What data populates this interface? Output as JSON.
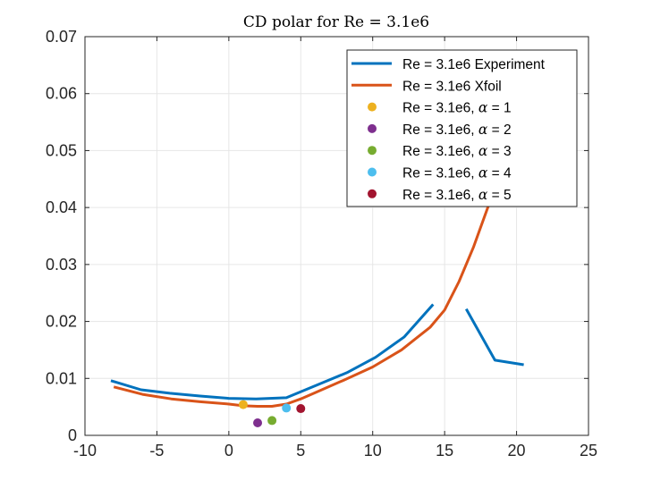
{
  "chart_data": {
    "type": "line",
    "title": "CD polar for Re = 3.1e6",
    "xlabel": "",
    "ylabel": "",
    "xlim": [
      -10,
      25
    ],
    "ylim": [
      0,
      0.07
    ],
    "x_ticks": [
      -10,
      -5,
      0,
      5,
      10,
      15,
      20,
      25
    ],
    "x_tick_labels": [
      "-10",
      "-5",
      "0",
      "5",
      "10",
      "15",
      "20",
      "25"
    ],
    "y_ticks": [
      0,
      0.01,
      0.02,
      0.03,
      0.04,
      0.05,
      0.06,
      0.07
    ],
    "y_tick_labels": [
      "0",
      "0.01",
      "0.02",
      "0.03",
      "0.04",
      "0.05",
      "0.06",
      "0.07"
    ],
    "grid": true,
    "legend_position": "top-right",
    "series": [
      {
        "name": "Re = 3.1e6 Experiment",
        "kind": "line",
        "color": "#0072BD",
        "x": [
          -8.2,
          -6.1,
          -4.1,
          -2.0,
          0.0,
          1.9,
          4.0,
          6.1,
          8.2,
          10.2,
          12.2,
          14.2,
          16.5,
          18.5,
          20.5
        ],
        "y": [
          0.0096,
          0.008,
          0.0074,
          0.0069,
          0.0065,
          0.0064,
          0.0066,
          0.0088,
          0.011,
          0.0137,
          0.0173,
          0.023,
          0.0222,
          0.0132,
          0.0124
        ],
        "breaks_after_index": 11
      },
      {
        "name": "Re = 3.1e6 Xfoil",
        "kind": "line",
        "color": "#D95319",
        "x": [
          -8.0,
          -6.0,
          -4.0,
          -2.0,
          0.0,
          1.0,
          2.0,
          3.0,
          4.0,
          5.0,
          6.0,
          8.0,
          10.0,
          12.0,
          14.0,
          15.0,
          16.0,
          17.0,
          18.0,
          18.6
        ],
        "y": [
          0.0085,
          0.0072,
          0.0064,
          0.0059,
          0.0055,
          0.0052,
          0.0051,
          0.0051,
          0.0055,
          0.0064,
          0.0075,
          0.0097,
          0.012,
          0.015,
          0.019,
          0.022,
          0.027,
          0.033,
          0.04,
          0.044
        ]
      },
      {
        "name": "Re = 3.1e6, α = 1",
        "kind": "point",
        "color": "#EDB120",
        "x": [
          1
        ],
        "y": [
          0.0054
        ]
      },
      {
        "name": "Re = 3.1e6, α = 2",
        "kind": "point",
        "color": "#7E2F8E",
        "x": [
          2
        ],
        "y": [
          0.0022
        ]
      },
      {
        "name": "Re = 3.1e6, α = 3",
        "kind": "point",
        "color": "#77AC30",
        "x": [
          3
        ],
        "y": [
          0.0026
        ]
      },
      {
        "name": "Re = 3.1e6, α = 4",
        "kind": "point",
        "color": "#4DBEEE",
        "x": [
          4
        ],
        "y": [
          0.0048
        ]
      },
      {
        "name": "Re = 3.1e6, α = 5",
        "kind": "point",
        "color": "#A2142F",
        "x": [
          5
        ],
        "y": [
          0.0047
        ]
      }
    ],
    "legend": [
      {
        "prefix": "Re = 3.1e6 Experiment",
        "greek": "",
        "suffix": ""
      },
      {
        "prefix": "Re = 3.1e6 Xfoil",
        "greek": "",
        "suffix": ""
      },
      {
        "prefix": "Re = 3.1e6, ",
        "greek": "α",
        "suffix": " = 1"
      },
      {
        "prefix": "Re = 3.1e6, ",
        "greek": "α",
        "suffix": " = 2"
      },
      {
        "prefix": "Re = 3.1e6, ",
        "greek": "α",
        "suffix": " = 3"
      },
      {
        "prefix": "Re = 3.1e6, ",
        "greek": "α",
        "suffix": " = 4"
      },
      {
        "prefix": "Re = 3.1e6, ",
        "greek": "α",
        "suffix": " = 5"
      }
    ]
  }
}
